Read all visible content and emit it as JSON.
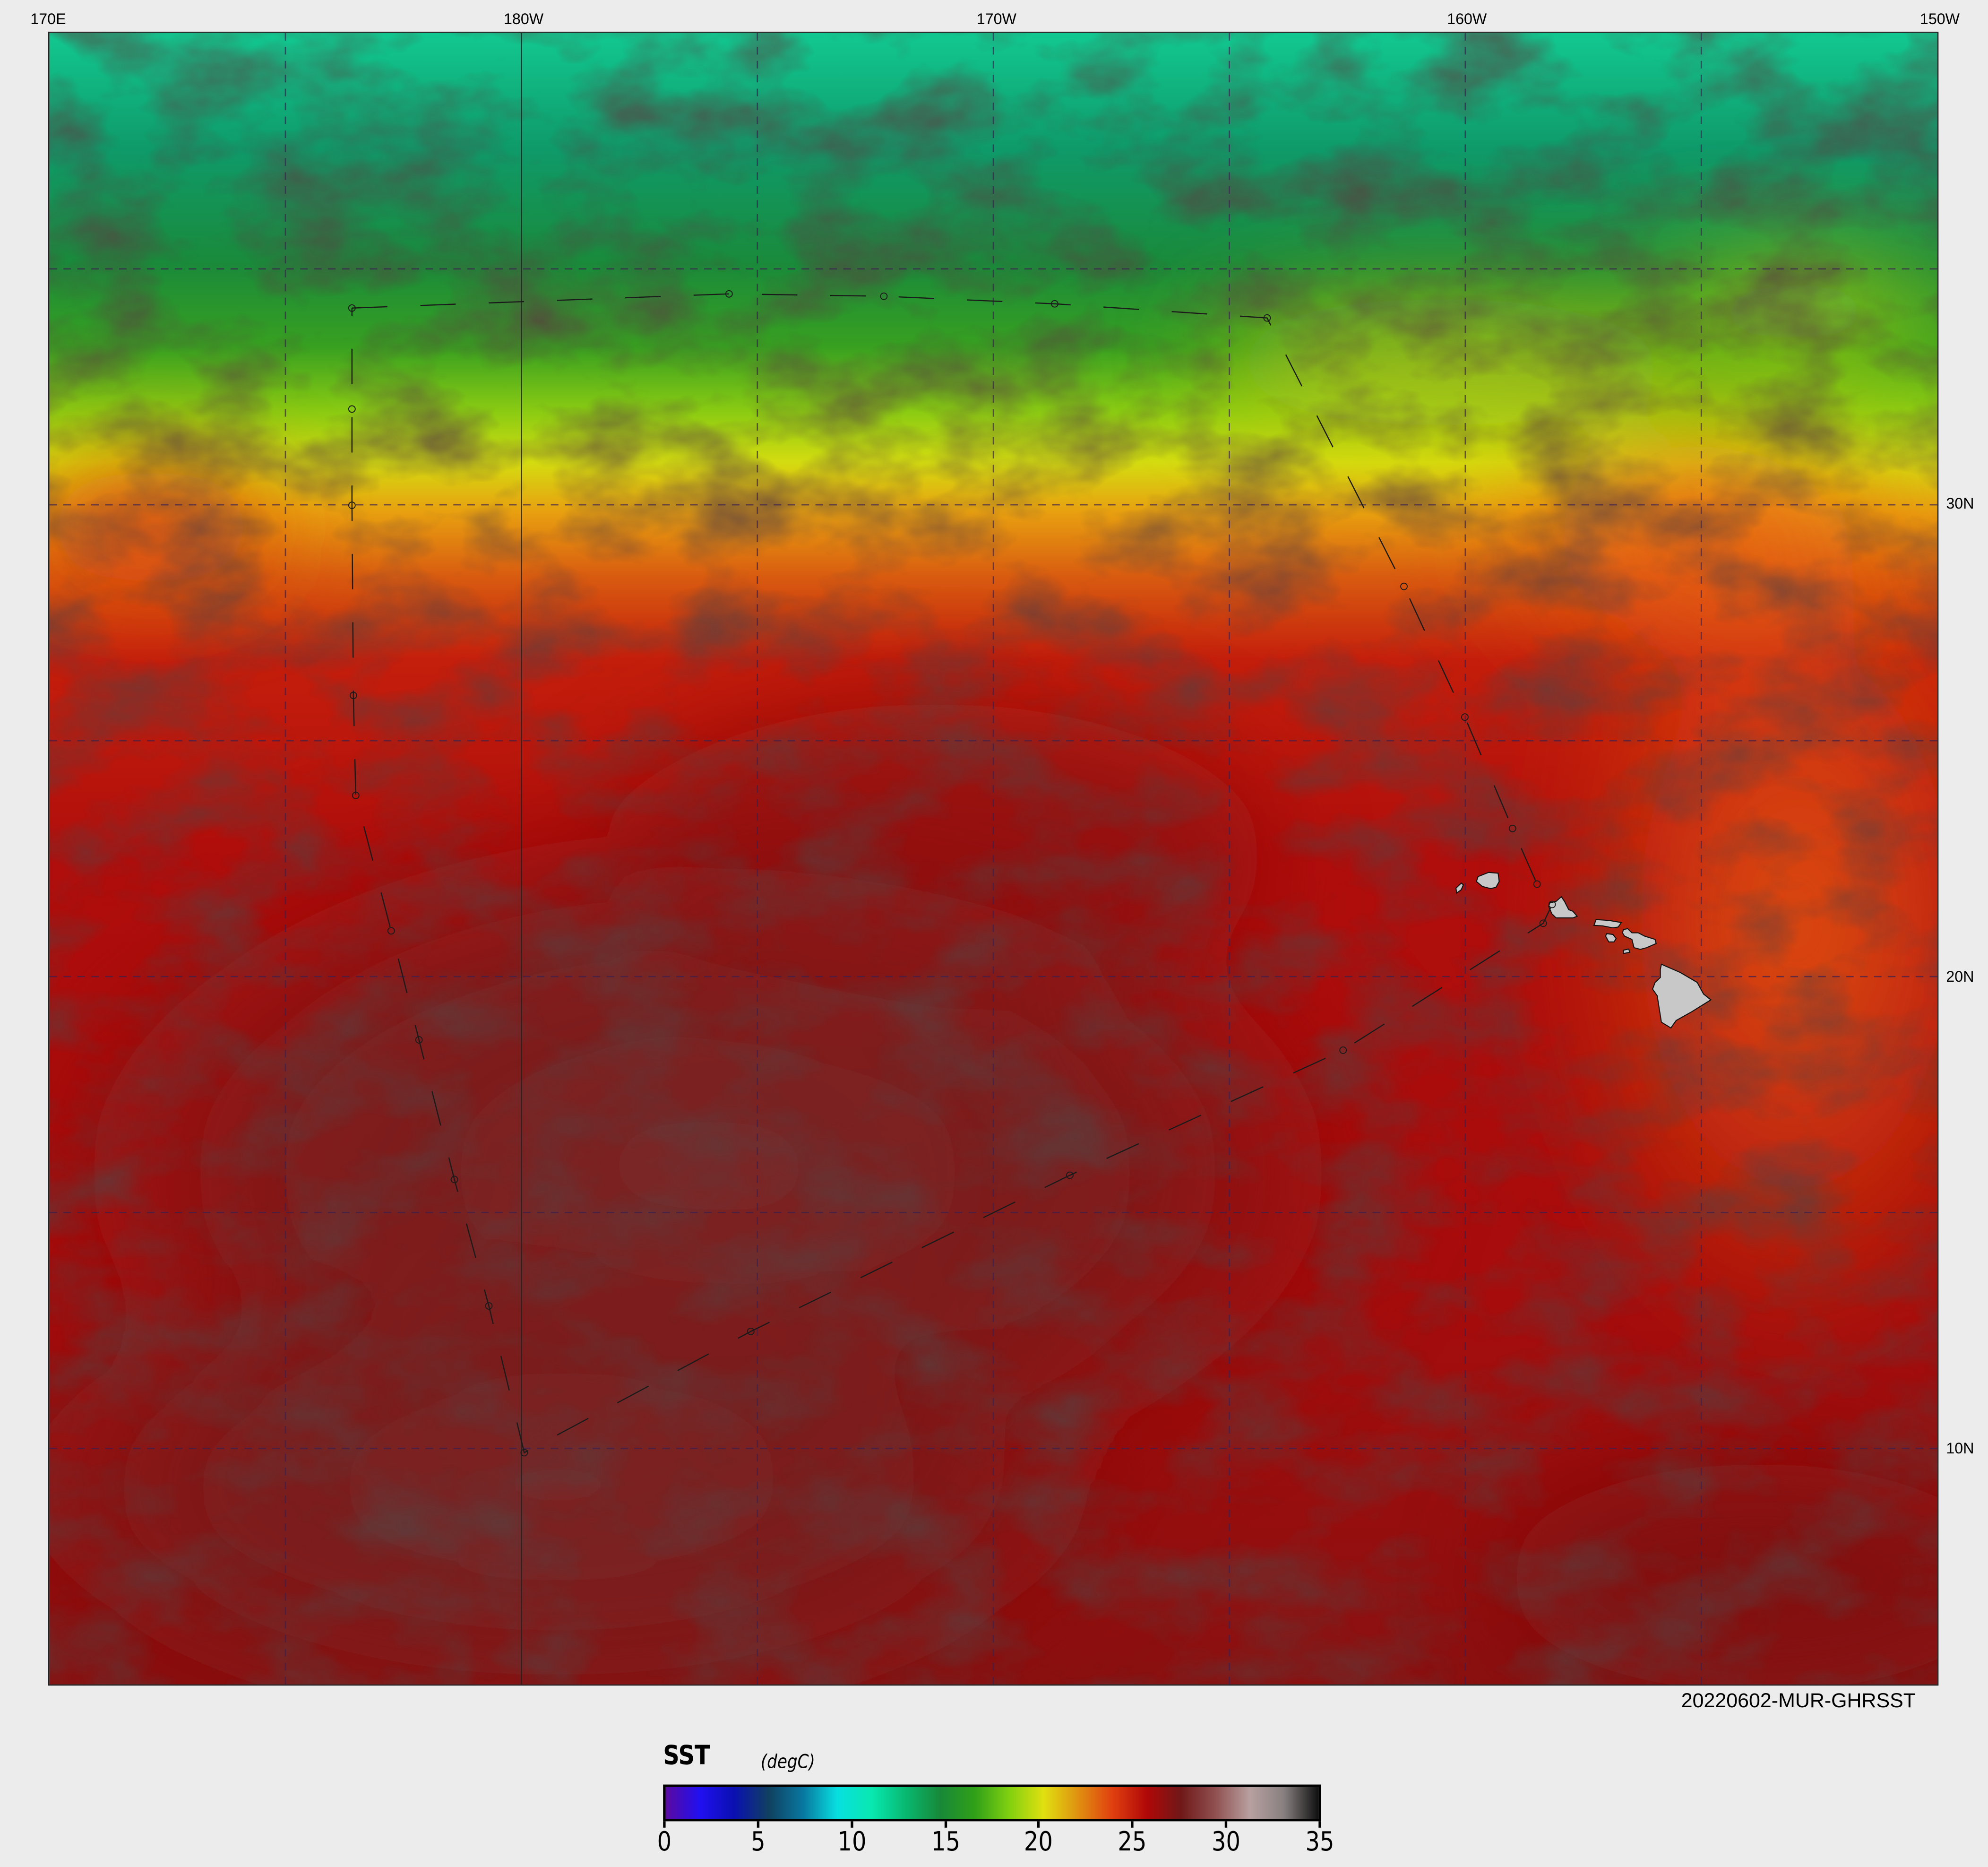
{
  "map": {
    "type": "sea-surface-temperature-map",
    "lon_labels": [
      "170E",
      "180W",
      "170W",
      "160W",
      "150W"
    ],
    "lat_labels": [
      "30N",
      "20N",
      "10N"
    ],
    "lon_range_deg_east": [
      170,
      210
    ],
    "lat_range": [
      5,
      40
    ],
    "grid_spacing_deg": 5,
    "grid": true,
    "land_color": "#c8c8c8",
    "product_label": "20220602-MUR-GHRSST",
    "track_lonlat": [
      [
        176.41,
        34.17
      ],
      [
        184.4,
        34.47
      ],
      [
        187.68,
        34.42
      ],
      [
        191.3,
        34.26
      ],
      [
        195.8,
        33.96
      ],
      [
        198.7,
        28.27
      ],
      [
        199.99,
        25.5
      ],
      [
        201.0,
        23.14
      ],
      [
        201.52,
        21.96
      ],
      [
        201.84,
        21.53
      ],
      [
        201.65,
        21.13
      ],
      [
        197.41,
        18.44
      ],
      [
        191.62,
        15.79
      ],
      [
        184.86,
        12.48
      ],
      [
        180.06,
        9.91
      ],
      [
        179.31,
        13.02
      ],
      [
        178.58,
        15.7
      ],
      [
        177.83,
        18.66
      ],
      [
        177.24,
        20.97
      ],
      [
        176.49,
        23.84
      ],
      [
        176.44,
        25.96
      ],
      [
        176.41,
        29.99
      ],
      [
        176.41,
        32.03
      ],
      [
        176.41,
        34.17
      ]
    ]
  },
  "colorbar": {
    "title": "SST",
    "unit": "(degC)",
    "range": [
      0,
      35
    ],
    "ticks": [
      "0",
      "5",
      "10",
      "15",
      "20",
      "25",
      "30",
      "35"
    ],
    "colors": [
      "#5a0aa0",
      "#2010f0",
      "#0a10b0",
      "#104060",
      "#0878a0",
      "#08e0e0",
      "#08e8b0",
      "#08b870",
      "#188838",
      "#30a018",
      "#80d010",
      "#e0e010",
      "#e09010",
      "#e04010",
      "#b00808",
      "#701818",
      "#905050",
      "#b8a0a0",
      "#888080",
      "#101010"
    ]
  }
}
